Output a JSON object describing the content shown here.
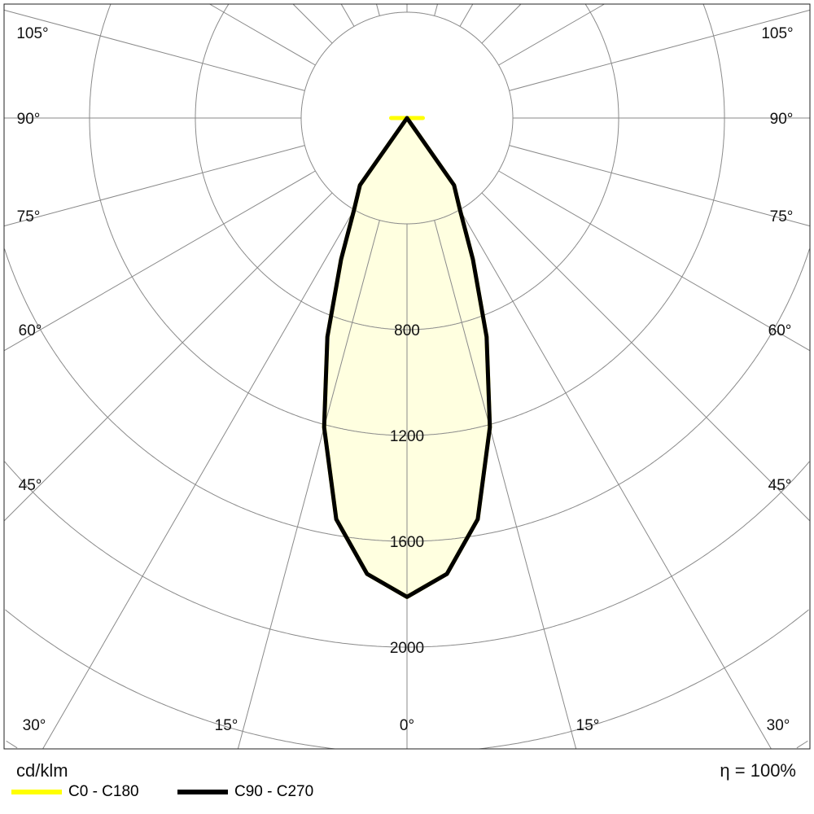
{
  "chart_data": {
    "type": "polar",
    "unit_label": "cd/klm",
    "efficiency_label": "η = 100%",
    "radial_ticks": [
      400,
      800,
      1200,
      1600,
      2000,
      2400,
      2800,
      3200
    ],
    "radial_tick_labels": [
      "800",
      "1200",
      "1600",
      "2000"
    ],
    "angle_ticks": [
      0,
      15,
      30,
      45,
      60,
      75,
      90,
      105,
      120,
      135,
      150,
      165,
      180
    ],
    "angle_labels": {
      "left": [
        "105°",
        "90°",
        "75°",
        "60°",
        "45°",
        "30°",
        "15°"
      ],
      "bottom": "0°",
      "right": [
        "105°",
        "90°",
        "75°",
        "60°",
        "45°",
        "30°",
        "15°"
      ]
    },
    "grid": true,
    "legend_placement": "bottom-left",
    "series": [
      {
        "name": "C0 - C180",
        "color": "#ffff00",
        "angles": [
          0,
          5,
          10,
          15,
          20,
          25,
          30,
          35,
          40,
          85,
          90
        ],
        "values": [
          1810,
          1730,
          1540,
          1210,
          880,
          590,
          400,
          310,
          0,
          0,
          60
        ]
      },
      {
        "name": "C90 - C270",
        "color": "#000000",
        "angles": [
          0,
          5,
          10,
          15,
          20,
          25,
          30,
          35,
          40,
          90
        ],
        "values": [
          1810,
          1730,
          1540,
          1210,
          880,
          590,
          400,
          310,
          0,
          0
        ]
      }
    ],
    "fill_color": "#ffffe0"
  }
}
